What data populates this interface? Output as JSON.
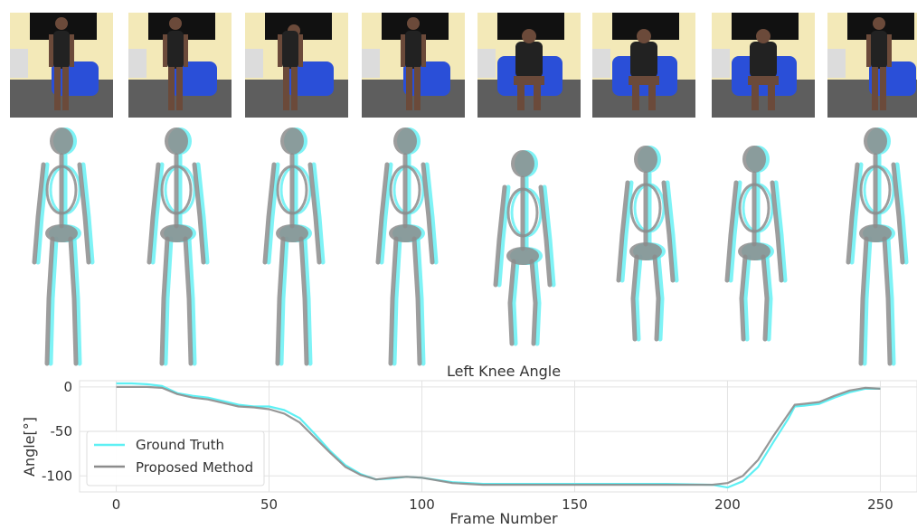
{
  "frames": 8,
  "colors": {
    "ground_truth": "#5ef0f4",
    "proposed": "#8c8c8c",
    "chair": "#2a4fd8",
    "wall": "#f3e9b8",
    "board": "#111111",
    "floor": "#5e5e5e",
    "skin": "#6b4a3a"
  },
  "chart_data": {
    "type": "line",
    "title": "Left Knee Angle",
    "xlabel": "Frame Number",
    "ylabel": "Angle[°]",
    "xlim": [
      -12,
      262
    ],
    "ylim": [
      -118,
      7
    ],
    "xticks": [
      0,
      50,
      100,
      150,
      200,
      250
    ],
    "yticks": [
      0,
      -50,
      -100
    ],
    "grid": true,
    "legend_position": "lower-left",
    "series": [
      {
        "name": "Ground Truth",
        "color": "#5ef0f4",
        "x": [
          0,
          5,
          10,
          15,
          20,
          25,
          30,
          35,
          40,
          45,
          50,
          55,
          60,
          65,
          70,
          75,
          80,
          85,
          90,
          95,
          100,
          110,
          120,
          150,
          180,
          195,
          200,
          205,
          210,
          215,
          220,
          222,
          225,
          230,
          235,
          240,
          245,
          250
        ],
        "y": [
          4,
          4,
          3,
          1,
          -7,
          -10,
          -12,
          -16,
          -20,
          -22,
          -22,
          -26,
          -35,
          -53,
          -72,
          -88,
          -98,
          -104,
          -103,
          -101,
          -102,
          -107,
          -109,
          -109,
          -109,
          -110,
          -113,
          -106,
          -90,
          -62,
          -35,
          -22,
          -21,
          -19,
          -12,
          -6,
          -2,
          -2
        ]
      },
      {
        "name": "Proposed Method",
        "color": "#8c8c8c",
        "x": [
          0,
          5,
          10,
          15,
          20,
          25,
          30,
          35,
          40,
          45,
          50,
          55,
          60,
          65,
          70,
          75,
          80,
          85,
          90,
          95,
          100,
          110,
          120,
          150,
          180,
          195,
          200,
          205,
          210,
          215,
          220,
          222,
          225,
          230,
          235,
          240,
          245,
          250
        ],
        "y": [
          0,
          0,
          0,
          -1,
          -8,
          -12,
          -14,
          -18,
          -22,
          -23,
          -25,
          -30,
          -40,
          -57,
          -74,
          -90,
          -99,
          -104,
          -102,
          -101,
          -102,
          -108,
          -110,
          -110,
          -110,
          -110,
          -108,
          -100,
          -82,
          -55,
          -30,
          -20,
          -19,
          -17,
          -10,
          -4,
          -1,
          -2
        ]
      }
    ]
  }
}
